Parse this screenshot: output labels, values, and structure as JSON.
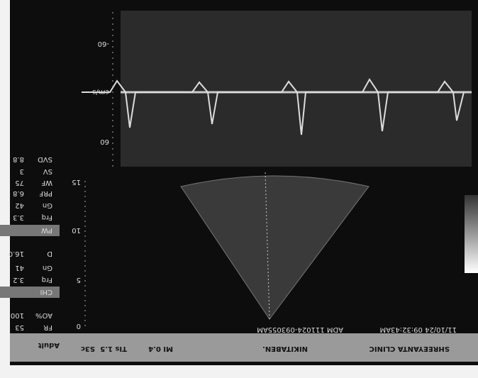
{
  "header": {
    "clinic": "SHREEYANTA CLINIC",
    "patient": "NIKITABEN.",
    "datetime": "11/10/24 09:32:43AM",
    "id": "ADM 111024-093055AM",
    "mi": "MI 0.4",
    "tis": "TIs 1.5",
    "probe": "S3c",
    "preset": "Adult"
  },
  "params": [
    {
      "label": "FR",
      "value": "53"
    },
    {
      "label": "AO%",
      "value": "100"
    },
    {
      "label": "CHI",
      "value": ""
    },
    {
      "label": "Frq",
      "value": "3.2"
    },
    {
      "label": "Gn",
      "value": "41"
    },
    {
      "label": "D",
      "value": "16.0"
    },
    {
      "label": "PW",
      "value": ""
    },
    {
      "label": "Frq",
      "value": "3.3"
    },
    {
      "label": "Gn",
      "value": "42"
    },
    {
      "label": "PRF",
      "value": "6.8"
    },
    {
      "label": "WF",
      "value": "75"
    },
    {
      "label": "SV",
      "value": "3"
    },
    {
      "label": "SVD",
      "value": "8.8"
    }
  ],
  "depth_scale": [
    "0",
    "5",
    "10",
    "15"
  ],
  "doppler": {
    "top": "-60",
    "unit": "cm/s",
    "bottom": "60"
  }
}
